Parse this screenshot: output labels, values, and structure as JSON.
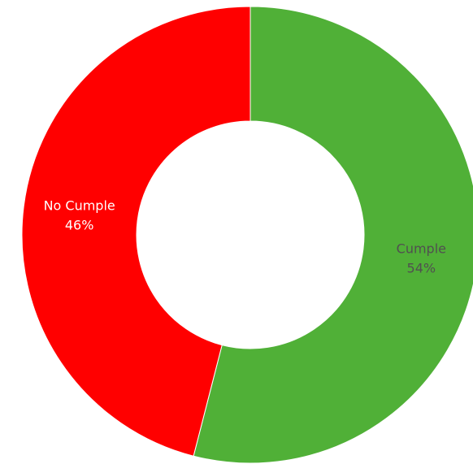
{
  "chart_data": {
    "type": "pie",
    "variant": "donut",
    "title": "",
    "legend": "none",
    "slices": [
      {
        "label": "Cumple",
        "value": 54,
        "display": "54%",
        "color": "#50b037",
        "label_color": "#505050"
      },
      {
        "label": "No Cumple",
        "value": 46,
        "display": "46%",
        "color": "#ff0000",
        "label_color": "#ffffff"
      }
    ]
  }
}
